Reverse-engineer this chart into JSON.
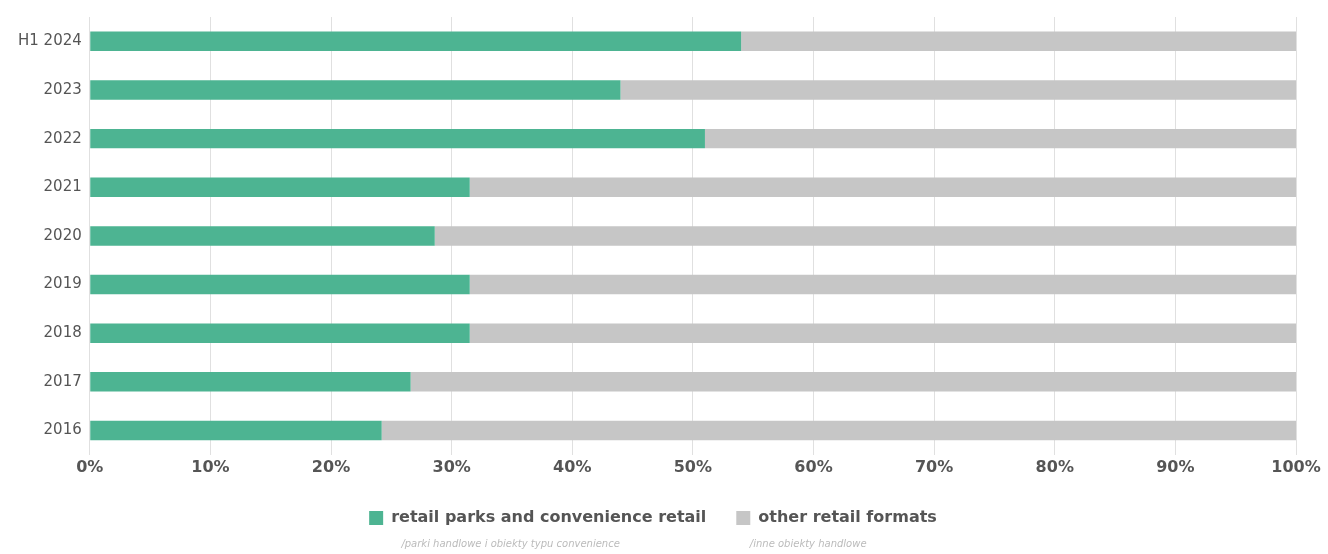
{
  "chart_data": {
    "type": "bar",
    "orientation": "horizontal",
    "stacked": true,
    "categories": [
      "H1 2024",
      "2023",
      "2022",
      "2021",
      "2020",
      "2019",
      "2018",
      "2017",
      "2016"
    ],
    "series": [
      {
        "name": "retail parks and convenience retail",
        "color": "#4db492",
        "values": [
          54,
          44,
          51,
          31.5,
          28.6,
          31.5,
          31.5,
          26.6,
          24.2
        ]
      },
      {
        "name": "other retail formats",
        "color": "#c6c6c6",
        "values": [
          46,
          56,
          49,
          68.5,
          71.4,
          68.5,
          68.5,
          73.4,
          75.8
        ]
      }
    ],
    "xlim": [
      0,
      100
    ],
    "xticks": [
      {
        "value": 0,
        "label": "0%"
      },
      {
        "value": 10,
        "label": "10%"
      },
      {
        "value": 20,
        "label": "20%"
      },
      {
        "value": 30,
        "label": "30%"
      },
      {
        "value": 40,
        "label": "40%"
      },
      {
        "value": 50,
        "label": "50%"
      },
      {
        "value": 60,
        "label": "60%"
      },
      {
        "value": 70,
        "label": "70%"
      },
      {
        "value": 80,
        "label": "80%"
      },
      {
        "value": 90,
        "label": "90%"
      },
      {
        "value": 100,
        "label": "100%"
      }
    ],
    "grid": "x",
    "legend": "bottom",
    "annotations": [
      "/parki handlowe i obiekty typu convenience",
      "/inne obiekty handlowe"
    ]
  }
}
